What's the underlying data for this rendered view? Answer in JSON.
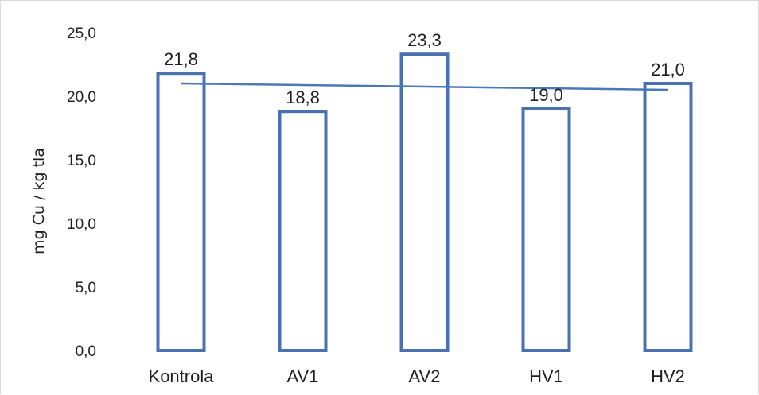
{
  "chart_data": {
    "type": "bar",
    "categories": [
      "Kontrola",
      "AV1",
      "AV2",
      "HV1",
      "HV2"
    ],
    "values": [
      21.8,
      18.8,
      23.3,
      19.0,
      21.0
    ],
    "value_labels": [
      "21,8",
      "18,8",
      "23,3",
      "19,0",
      "21,0"
    ],
    "ylabel": "mg Cu / kg tla",
    "xlabel": "",
    "ylim": [
      0,
      25
    ],
    "yticks": [
      0,
      5,
      10,
      15,
      20,
      25
    ],
    "ytick_labels": [
      "0,0",
      "5,0",
      "10,0",
      "15,0",
      "20,0",
      "25,0"
    ],
    "trendline": {
      "type": "linear",
      "start_value": 21.0,
      "end_value": 20.5
    },
    "grid": false,
    "legend": "none",
    "colors": {
      "bar_outline": "#4a72b0",
      "bar_fill": "#ffffff",
      "trendline": "#4a78b8"
    }
  }
}
